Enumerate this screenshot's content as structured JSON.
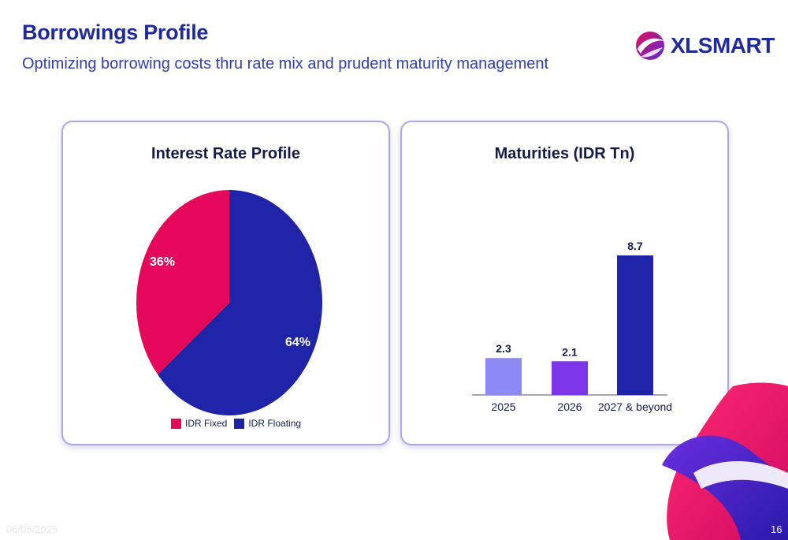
{
  "slide": {
    "title": "Borrowings Profile",
    "subtitle": "Optimizing borrowing costs thru rate mix and prudent maturity management",
    "date": "06/05/2025",
    "page": "16"
  },
  "logo": {
    "text": "XLSMART",
    "colors": {
      "text": "#1f2a9c",
      "mark_primary": "#e0105e",
      "mark_secondary": "#5b2bd6"
    }
  },
  "colors": {
    "idr_fixed": "#e6085a",
    "idr_floating": "#1f23a8",
    "bar_2025": "#8a8af2",
    "bar_2026": "#7d35ea",
    "bar_2027": "#1f23a8",
    "title": "#1f2a9c",
    "panel_border": "#a9a6f3"
  },
  "chart_data": [
    {
      "type": "pie",
      "title": "Interest Rate Profile",
      "slices": [
        {
          "label": "IDR Fixed",
          "value": 36,
          "display": "36%"
        },
        {
          "label": "IDR Floating",
          "value": 64,
          "display": "64%"
        }
      ],
      "legend": "bottom-center"
    },
    {
      "type": "bar",
      "title": "Maturities (IDR Tn)",
      "categories": [
        "2025",
        "2026",
        "2027 & beyond"
      ],
      "values": [
        2.3,
        2.1,
        8.7
      ],
      "value_labels": [
        "2.3",
        "2.1",
        "8.7"
      ],
      "ylim": [
        0,
        8.7
      ],
      "grid": false,
      "legend": "none"
    }
  ]
}
